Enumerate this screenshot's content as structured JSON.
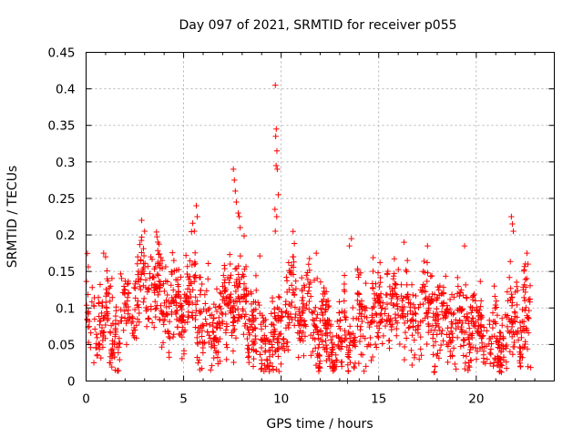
{
  "chart_data": {
    "type": "scatter",
    "title": "Day 097 of 2021, SRMTID for receiver p055",
    "xlabel": "GPS time / hours",
    "ylabel": "SRMTID / TECUs",
    "xlim": [
      0,
      24
    ],
    "ylim": [
      0,
      0.45
    ],
    "x_ticks": [
      0,
      5,
      10,
      15,
      20
    ],
    "x_tick_labels": [
      "0",
      "5",
      "10",
      "15",
      "20"
    ],
    "y_ticks": [
      0,
      0.05,
      0.1,
      0.15,
      0.2,
      0.25,
      0.3,
      0.35,
      0.4,
      0.45
    ],
    "y_tick_labels": [
      "0",
      "0.05",
      "0.1",
      "0.15",
      "0.2",
      "0.25",
      "0.3",
      "0.35",
      "0.4",
      "0.45"
    ],
    "grid": true,
    "marker": "plus",
    "marker_color": "#ff0000",
    "trend": [
      {
        "x": 0.0,
        "y": 0.085
      },
      {
        "x": 0.5,
        "y": 0.065
      },
      {
        "x": 1.0,
        "y": 0.09
      },
      {
        "x": 1.5,
        "y": 0.07
      },
      {
        "x": 2.0,
        "y": 0.085
      },
      {
        "x": 2.5,
        "y": 0.11
      },
      {
        "x": 3.0,
        "y": 0.135
      },
      {
        "x": 3.5,
        "y": 0.13
      },
      {
        "x": 4.0,
        "y": 0.1
      },
      {
        "x": 4.5,
        "y": 0.095
      },
      {
        "x": 5.0,
        "y": 0.11
      },
      {
        "x": 5.5,
        "y": 0.125
      },
      {
        "x": 6.0,
        "y": 0.08
      },
      {
        "x": 6.5,
        "y": 0.07
      },
      {
        "x": 7.0,
        "y": 0.085
      },
      {
        "x": 7.5,
        "y": 0.12
      },
      {
        "x": 8.0,
        "y": 0.1
      },
      {
        "x": 8.5,
        "y": 0.085
      },
      {
        "x": 9.0,
        "y": 0.065
      },
      {
        "x": 9.5,
        "y": 0.05
      },
      {
        "x": 10.0,
        "y": 0.075
      },
      {
        "x": 10.5,
        "y": 0.11
      },
      {
        "x": 11.0,
        "y": 0.1
      },
      {
        "x": 11.5,
        "y": 0.09
      },
      {
        "x": 12.0,
        "y": 0.08
      },
      {
        "x": 12.5,
        "y": 0.055
      },
      {
        "x": 13.0,
        "y": 0.05
      },
      {
        "x": 13.5,
        "y": 0.065
      },
      {
        "x": 14.0,
        "y": 0.075
      },
      {
        "x": 14.5,
        "y": 0.08
      },
      {
        "x": 15.0,
        "y": 0.09
      },
      {
        "x": 15.5,
        "y": 0.095
      },
      {
        "x": 16.0,
        "y": 0.1
      },
      {
        "x": 16.5,
        "y": 0.095
      },
      {
        "x": 17.0,
        "y": 0.085
      },
      {
        "x": 17.5,
        "y": 0.095
      },
      {
        "x": 18.0,
        "y": 0.09
      },
      {
        "x": 18.5,
        "y": 0.08
      },
      {
        "x": 19.0,
        "y": 0.085
      },
      {
        "x": 19.5,
        "y": 0.075
      },
      {
        "x": 20.0,
        "y": 0.07
      },
      {
        "x": 20.5,
        "y": 0.065
      },
      {
        "x": 21.0,
        "y": 0.05
      },
      {
        "x": 21.5,
        "y": 0.065
      },
      {
        "x": 22.0,
        "y": 0.085
      },
      {
        "x": 22.5,
        "y": 0.08
      },
      {
        "x": 22.8,
        "y": 0.07
      }
    ],
    "spread": 0.028,
    "x_range_data": [
      0,
      22.8
    ],
    "n_points": 1800,
    "spikes": [
      {
        "x": 0.9,
        "y": 0.175
      },
      {
        "x": 1.0,
        "y": 0.17
      },
      {
        "x": 2.85,
        "y": 0.22
      },
      {
        "x": 3.0,
        "y": 0.205
      },
      {
        "x": 5.65,
        "y": 0.24
      },
      {
        "x": 5.7,
        "y": 0.225
      },
      {
        "x": 5.55,
        "y": 0.205
      },
      {
        "x": 7.55,
        "y": 0.29
      },
      {
        "x": 7.6,
        "y": 0.275
      },
      {
        "x": 7.65,
        "y": 0.26
      },
      {
        "x": 7.7,
        "y": 0.245
      },
      {
        "x": 7.8,
        "y": 0.23
      },
      {
        "x": 7.85,
        "y": 0.225
      },
      {
        "x": 7.9,
        "y": 0.21
      },
      {
        "x": 9.7,
        "y": 0.405
      },
      {
        "x": 9.75,
        "y": 0.345
      },
      {
        "x": 9.72,
        "y": 0.335
      },
      {
        "x": 9.78,
        "y": 0.315
      },
      {
        "x": 9.74,
        "y": 0.295
      },
      {
        "x": 9.8,
        "y": 0.29
      },
      {
        "x": 9.85,
        "y": 0.255
      },
      {
        "x": 9.68,
        "y": 0.235
      },
      {
        "x": 9.77,
        "y": 0.225
      },
      {
        "x": 9.7,
        "y": 0.205
      },
      {
        "x": 13.6,
        "y": 0.195
      },
      {
        "x": 13.5,
        "y": 0.185
      },
      {
        "x": 16.3,
        "y": 0.19
      },
      {
        "x": 17.5,
        "y": 0.185
      },
      {
        "x": 19.4,
        "y": 0.185
      },
      {
        "x": 21.8,
        "y": 0.225
      },
      {
        "x": 21.85,
        "y": 0.215
      },
      {
        "x": 21.9,
        "y": 0.205
      },
      {
        "x": 22.6,
        "y": 0.175
      },
      {
        "x": 22.65,
        "y": 0.16
      },
      {
        "x": 10.6,
        "y": 0.17
      },
      {
        "x": 11.8,
        "y": 0.175
      },
      {
        "x": 4.5,
        "y": 0.165
      },
      {
        "x": 3.9,
        "y": 0.165
      }
    ],
    "lows": [
      {
        "x": 9.6,
        "y": 0.015
      },
      {
        "x": 9.55,
        "y": 0.02
      },
      {
        "x": 12.5,
        "y": 0.02
      },
      {
        "x": 13.4,
        "y": 0.0
      },
      {
        "x": 20.9,
        "y": 0.025
      },
      {
        "x": 21.2,
        "y": 0.03
      },
      {
        "x": 1.2,
        "y": 0.025
      },
      {
        "x": 0.4,
        "y": 0.025
      }
    ]
  }
}
